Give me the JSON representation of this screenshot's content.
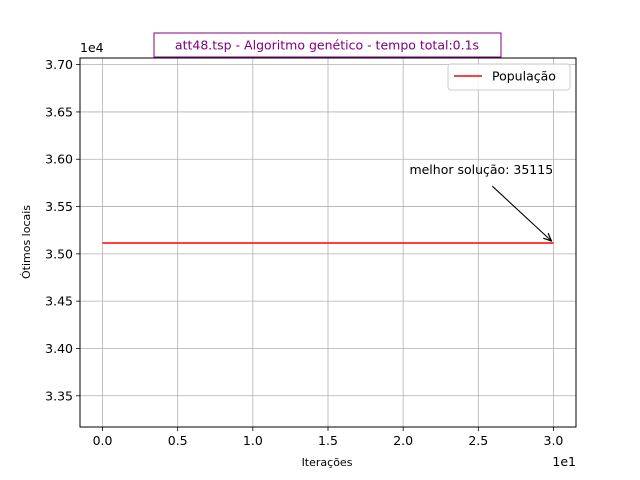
{
  "chart_data": {
    "type": "line",
    "title": "att48.tsp - Algoritmo genético - tempo total:0.1s",
    "xlabel": "Iterações",
    "ylabel": "Ótimos locais",
    "x_offset_label": "1e1",
    "y_offset_label": "1e4",
    "xlim": [
      -1.5,
      31.5
    ],
    "ylim": [
      33170,
      37070
    ],
    "xticks": [
      0,
      5,
      10,
      15,
      20,
      25,
      30
    ],
    "xtick_labels": [
      "0.0",
      "0.5",
      "1.0",
      "1.5",
      "2.0",
      "2.5",
      "3.0"
    ],
    "yticks": [
      33500,
      34000,
      34500,
      35000,
      35500,
      36000,
      36500,
      37000
    ],
    "ytick_labels": [
      "3.35",
      "3.40",
      "3.45",
      "3.50",
      "3.55",
      "3.60",
      "3.65",
      "3.70"
    ],
    "grid": true,
    "legend_position": "upper right",
    "series": [
      {
        "name": "População",
        "color": "#ff0000",
        "x": [
          0,
          30
        ],
        "y": [
          35115,
          35115
        ]
      }
    ],
    "annotation": {
      "text": "melhor solução: 35115",
      "point": [
        30,
        35115
      ],
      "text_anchor": [
        25.2,
        35800
      ]
    },
    "colors": {
      "title": "#800080",
      "grid": "#b0b0b0",
      "axis": "#000000"
    }
  }
}
